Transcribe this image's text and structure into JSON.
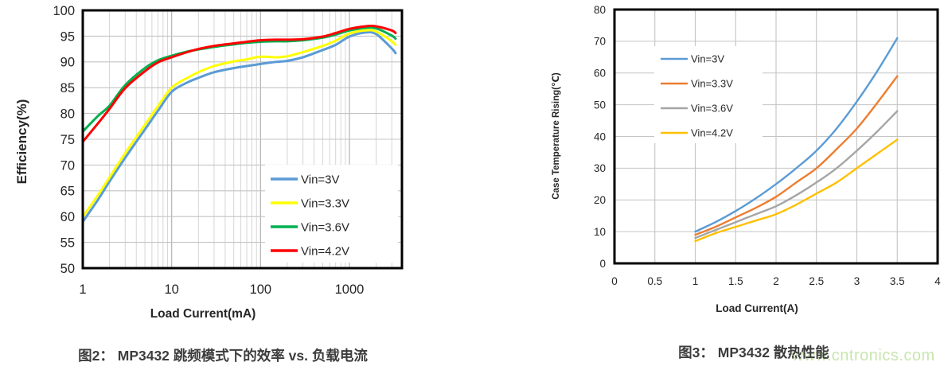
{
  "figures": {
    "fig2_caption": "图2： MP3432 跳频模式下的效率 vs. 负载电流",
    "fig3_caption": "图3： MP3432 散热性能"
  },
  "watermark": {
    "text": "www.cntronics.com",
    "color": "#c8e6af"
  },
  "colors": {
    "grid_major": "#b3b3b3",
    "grid_minor": "#d6d6d6",
    "grid_plain": "#c4c4c4",
    "plot_border": "#000000",
    "tick_text": "#262626",
    "caption_text": "#3d3d3d"
  },
  "chart_data": [
    {
      "type": "line",
      "title": "",
      "xlabel": "Load Current(mA)",
      "ylabel": "Efficiency(%)",
      "xscale": "log",
      "xlim": [
        1,
        3900
      ],
      "ylim": [
        50,
        100
      ],
      "xticks": [
        1,
        10,
        100,
        1000
      ],
      "yticks": [
        50,
        55,
        60,
        65,
        70,
        75,
        80,
        85,
        90,
        95,
        100
      ],
      "grid": true,
      "legend_position": "inside-bottom-right",
      "x": [
        1,
        1.5,
        2,
        3,
        5,
        7,
        10,
        15,
        20,
        30,
        50,
        70,
        100,
        150,
        200,
        300,
        500,
        700,
        1000,
        1500,
        2000,
        3000,
        3300
      ],
      "series": [
        {
          "name": "Vin=3V",
          "color": "#5B9BD5",
          "values": [
            59.0,
            63.4,
            66.8,
            71.4,
            76.9,
            80.5,
            84.2,
            86.0,
            86.9,
            88.0,
            88.8,
            89.2,
            89.6,
            90.0,
            90.2,
            90.9,
            92.3,
            93.3,
            94.9,
            95.7,
            95.4,
            92.6,
            91.7
          ]
        },
        {
          "name": "Vin=3.3V",
          "color": "#FFFF00",
          "values": [
            60.0,
            64.3,
            67.6,
            72.3,
            77.8,
            81.4,
            85.0,
            86.9,
            88.0,
            89.2,
            90.1,
            90.5,
            91.0,
            90.9,
            91.1,
            91.9,
            93.1,
            94.1,
            95.5,
            96.1,
            95.9,
            94.0,
            93.3
          ]
        },
        {
          "name": "Vin=3.6V",
          "color": "#00B050",
          "values": [
            76.5,
            79.6,
            81.5,
            85.5,
            88.8,
            90.3,
            91.2,
            92.0,
            92.4,
            92.9,
            93.4,
            93.7,
            93.9,
            94.0,
            94.0,
            94.2,
            94.7,
            95.3,
            96.1,
            96.6,
            96.5,
            95.1,
            94.5
          ]
        },
        {
          "name": "Vin=4.2V",
          "color": "#FF0000",
          "values": [
            74.5,
            78.2,
            80.9,
            84.9,
            88.2,
            89.9,
            90.9,
            91.9,
            92.5,
            93.1,
            93.6,
            93.9,
            94.2,
            94.3,
            94.3,
            94.4,
            94.9,
            95.6,
            96.4,
            96.9,
            96.9,
            96.1,
            95.6
          ]
        }
      ]
    },
    {
      "type": "line",
      "title": "",
      "xlabel": "Load Current(A)",
      "ylabel": "Case Temperature Rising(℃)",
      "xscale": "linear",
      "xlim": [
        0,
        4
      ],
      "ylim": [
        0,
        80
      ],
      "xticks": [
        0,
        0.5,
        1,
        1.5,
        2,
        2.5,
        3,
        3.5,
        4
      ],
      "yticks": [
        0,
        10,
        20,
        30,
        40,
        50,
        60,
        70,
        80
      ],
      "grid": true,
      "legend_position": "inside-top-left",
      "x": [
        1,
        1.25,
        1.5,
        1.75,
        2,
        2.25,
        2.5,
        2.75,
        3,
        3.25,
        3.5
      ],
      "series": [
        {
          "name": "Vin=3V",
          "color": "#5B9BD5",
          "values": [
            10,
            13,
            16.5,
            20.5,
            25,
            30,
            35.5,
            42.5,
            51,
            60.5,
            71
          ]
        },
        {
          "name": "Vin=3.3V",
          "color": "#ED7D31",
          "values": [
            9,
            11.5,
            14.5,
            17.5,
            21,
            25.5,
            30,
            36,
            42.5,
            50.5,
            59
          ]
        },
        {
          "name": "Vin=3.6V",
          "color": "#A5A5A5",
          "values": [
            8,
            10.5,
            13,
            15.5,
            18,
            21.5,
            25.5,
            30,
            35.5,
            41.5,
            48
          ]
        },
        {
          "name": "Vin=4.2V",
          "color": "#FFC000",
          "values": [
            7,
            9.5,
            11.5,
            13.5,
            15.5,
            18.5,
            22,
            25.5,
            30,
            34.5,
            39
          ]
        }
      ]
    }
  ]
}
